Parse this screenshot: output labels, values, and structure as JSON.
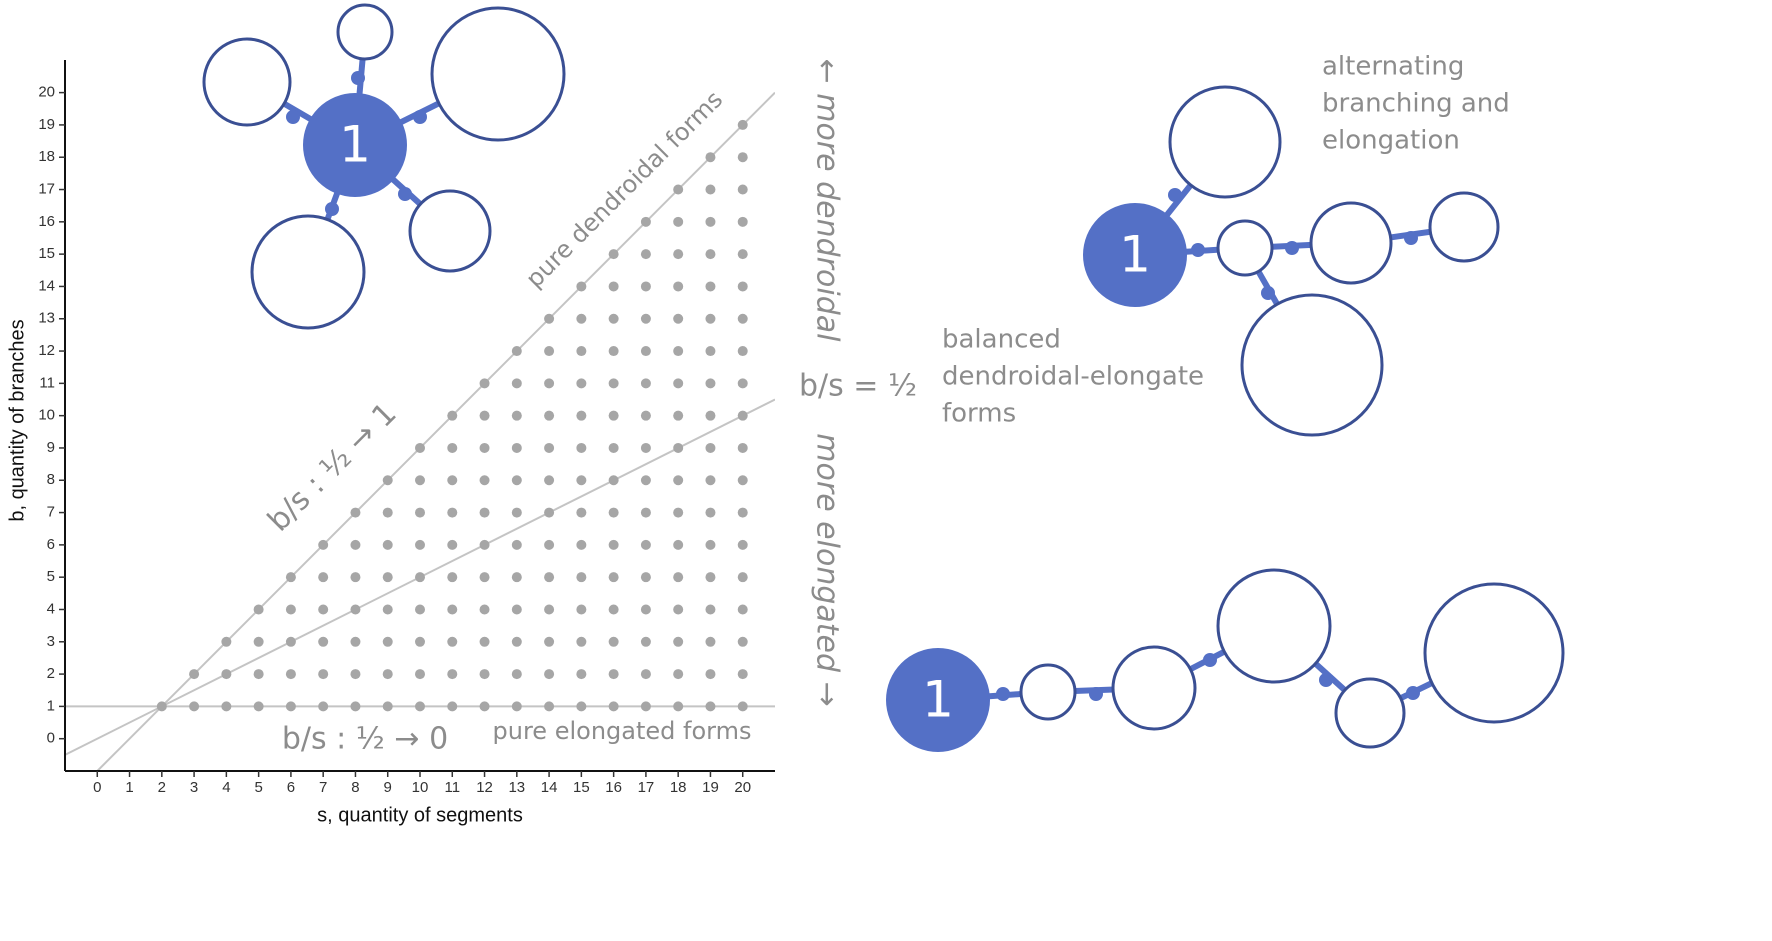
{
  "chart_data": {
    "type": "scatter",
    "xlabel": "s, quantity of segments",
    "ylabel": "b, quantity of branches",
    "x": [
      2,
      3,
      3,
      4,
      4,
      4,
      5,
      5,
      5,
      5,
      6,
      6,
      6,
      6,
      6,
      7,
      7,
      7,
      7,
      7,
      7,
      8,
      8,
      8,
      8,
      8,
      8,
      8,
      9,
      9,
      9,
      9,
      9,
      9,
      9,
      9,
      10,
      10,
      10,
      10,
      10,
      10,
      10,
      10,
      10,
      11,
      11,
      11,
      11,
      11,
      11,
      11,
      11,
      11,
      11,
      12,
      12,
      12,
      12,
      12,
      12,
      12,
      12,
      12,
      12,
      12,
      13,
      13,
      13,
      13,
      13,
      13,
      13,
      13,
      13,
      13,
      13,
      13,
      14,
      14,
      14,
      14,
      14,
      14,
      14,
      14,
      14,
      14,
      14,
      14,
      14,
      15,
      15,
      15,
      15,
      15,
      15,
      15,
      15,
      15,
      15,
      15,
      15,
      15,
      15,
      16,
      16,
      16,
      16,
      16,
      16,
      16,
      16,
      16,
      16,
      16,
      16,
      16,
      16,
      16,
      17,
      17,
      17,
      17,
      17,
      17,
      17,
      17,
      17,
      17,
      17,
      17,
      17,
      17,
      17,
      17,
      18,
      18,
      18,
      18,
      18,
      18,
      18,
      18,
      18,
      18,
      18,
      18,
      18,
      18,
      18,
      18,
      18,
      19,
      19,
      19,
      19,
      19,
      19,
      19,
      19,
      19,
      19,
      19,
      19,
      19,
      19,
      19,
      19,
      19,
      19,
      20,
      20,
      20,
      20,
      20,
      20,
      20,
      20,
      20,
      20,
      20,
      20,
      20,
      20,
      20,
      20,
      20,
      20,
      20
    ],
    "y": [
      1,
      1,
      2,
      1,
      2,
      3,
      1,
      2,
      3,
      4,
      1,
      2,
      3,
      4,
      5,
      1,
      2,
      3,
      4,
      5,
      6,
      1,
      2,
      3,
      4,
      5,
      6,
      7,
      1,
      2,
      3,
      4,
      5,
      6,
      7,
      8,
      1,
      2,
      3,
      4,
      5,
      6,
      7,
      8,
      9,
      1,
      2,
      3,
      4,
      5,
      6,
      7,
      8,
      9,
      10,
      1,
      2,
      3,
      4,
      5,
      6,
      7,
      8,
      9,
      10,
      11,
      1,
      2,
      3,
      4,
      5,
      6,
      7,
      8,
      9,
      10,
      11,
      12,
      1,
      2,
      3,
      4,
      5,
      6,
      7,
      8,
      9,
      10,
      11,
      12,
      13,
      1,
      2,
      3,
      4,
      5,
      6,
      7,
      8,
      9,
      10,
      11,
      12,
      13,
      14,
      1,
      2,
      3,
      4,
      5,
      6,
      7,
      8,
      9,
      10,
      11,
      12,
      13,
      14,
      15,
      1,
      2,
      3,
      4,
      5,
      6,
      7,
      8,
      9,
      10,
      11,
      12,
      13,
      14,
      15,
      16,
      1,
      2,
      3,
      4,
      5,
      6,
      7,
      8,
      9,
      10,
      11,
      12,
      13,
      14,
      15,
      16,
      17,
      1,
      2,
      3,
      4,
      5,
      6,
      7,
      8,
      9,
      10,
      11,
      12,
      13,
      14,
      15,
      16,
      17,
      18,
      1,
      2,
      3,
      4,
      5,
      6,
      7,
      8,
      9,
      10,
      11,
      12,
      13,
      14,
      15,
      16,
      17,
      18,
      19
    ],
    "color": "#a6a6a6",
    "lines": [
      {
        "slope": 1,
        "intercept": -1
      },
      {
        "slope": 0.5,
        "intercept": 0
      },
      {
        "slope": 0,
        "intercept": 1
      }
    ],
    "line_color": "#c4c4c4",
    "xlim": [
      -1,
      21
    ],
    "ylim": [
      -1,
      20.7
    ],
    "xticks": [
      0,
      1,
      2,
      3,
      4,
      5,
      6,
      7,
      8,
      9,
      10,
      11,
      12,
      13,
      14,
      15,
      16,
      17,
      18,
      19,
      20
    ],
    "yticks": [
      0,
      1,
      2,
      3,
      4,
      5,
      6,
      7,
      8,
      9,
      10,
      11,
      12,
      13,
      14,
      15,
      16,
      17,
      18,
      19,
      20
    ],
    "annotations": {
      "dendroidal": "pure dendroidal forms",
      "upper_ratio": "b/s : ½ → 1",
      "lower_ratio": "b/s : ½ → 0",
      "elongated": "pure elongated forms",
      "more_dendroidal": "← more dendroidal",
      "more_elongated": "more elongated →",
      "half": "b/s = ½",
      "balanced": [
        "balanced",
        "dendroidal-elongate",
        "forms"
      ],
      "alternating": [
        "alternating",
        "branching and",
        "elongation"
      ]
    }
  },
  "diagrams": [
    {
      "label": "1"
    },
    {
      "label": "1"
    },
    {
      "label": "1"
    }
  ]
}
